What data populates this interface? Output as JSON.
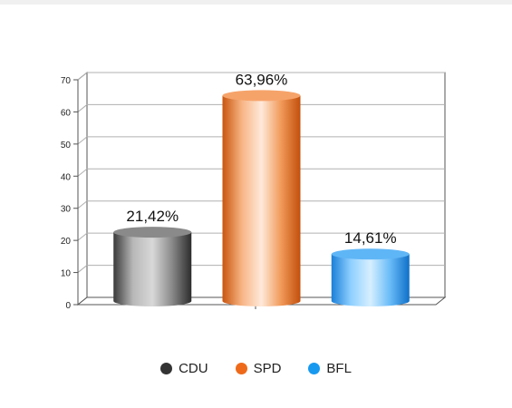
{
  "chart_data": {
    "type": "bar",
    "style": "3d-cylinder",
    "categories": [
      "CDU",
      "SPD",
      "BFL"
    ],
    "values": [
      21.42,
      63.96,
      14.61
    ],
    "value_labels": [
      "21,42%",
      "63,96%",
      "14,61%"
    ],
    "colors": [
      "#333333",
      "#ee6a1a",
      "#1899f0"
    ],
    "ylim": [
      0,
      70
    ],
    "yticks": [
      "0",
      "10",
      "20",
      "30",
      "40",
      "50",
      "60",
      "70"
    ],
    "grid": true,
    "legend_position": "bottom"
  },
  "legend": [
    {
      "label": "CDU",
      "color": "#333333"
    },
    {
      "label": "SPD",
      "color": "#ee6a1a"
    },
    {
      "label": "BFL",
      "color": "#1899f0"
    }
  ]
}
